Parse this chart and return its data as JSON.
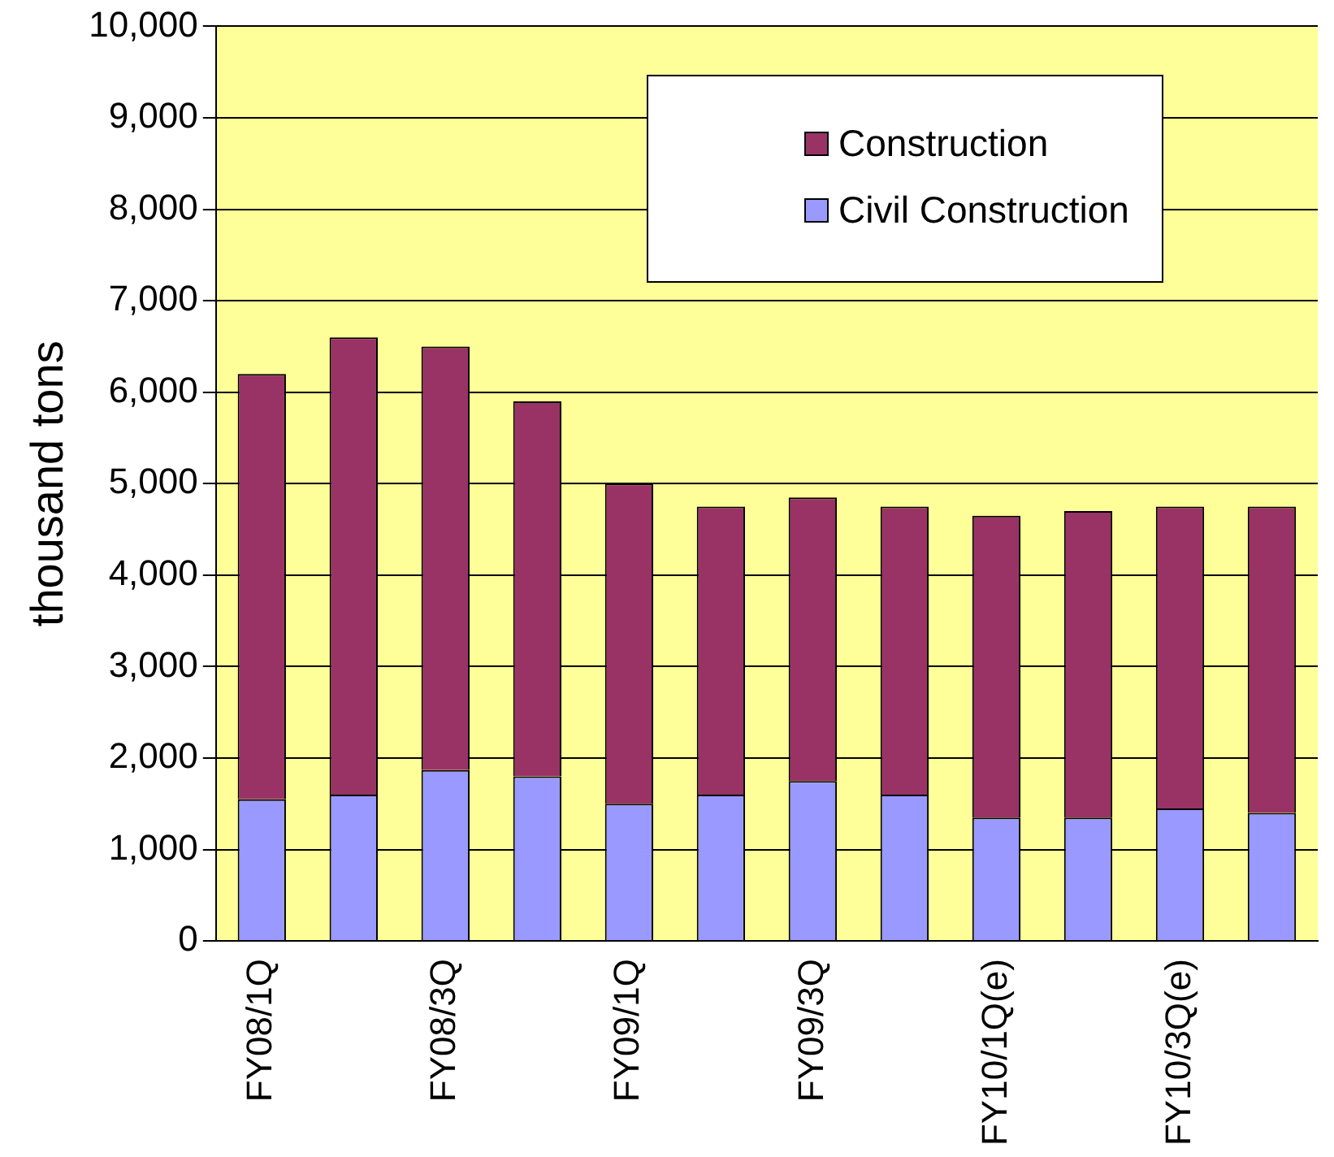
{
  "chart_data": {
    "type": "bar",
    "stacked": true,
    "ylabel": "thousand tons",
    "categories": [
      "FY08/1Q",
      null,
      "FY08/3Q",
      null,
      "FY09/1Q",
      null,
      "FY09/3Q",
      null,
      "FY10/1Q(e)",
      null,
      "FY10/3Q(e)",
      null
    ],
    "series": [
      {
        "name": "Civil Construction",
        "color": "#9999ff",
        "values": [
          1550,
          1600,
          1870,
          1800,
          1500,
          1600,
          1750,
          1600,
          1350,
          1350,
          1450,
          1400
        ]
      },
      {
        "name": "Construction",
        "color": "#993366",
        "values": [
          4650,
          5000,
          4630,
          4100,
          3500,
          3150,
          3100,
          3150,
          3300,
          3350,
          3300,
          3350
        ]
      }
    ],
    "ylim": [
      0,
      10000
    ],
    "yticks": [
      0,
      {
        "value": 1000,
        "label": "1,000"
      },
      {
        "value": 2000,
        "label": "2,000"
      },
      {
        "value": 3000,
        "label": "3,000"
      },
      {
        "value": 4000,
        "label": "4,000"
      },
      {
        "value": 5000,
        "label": "5,000"
      },
      {
        "value": 6000,
        "label": "6,000"
      },
      {
        "value": 7000,
        "label": "7,000"
      },
      {
        "value": 8000,
        "label": "8,000"
      },
      {
        "value": 9000,
        "label": "9,000"
      },
      {
        "value": 10000,
        "label": "10,000"
      }
    ],
    "grid": "y",
    "legend": "top right"
  }
}
